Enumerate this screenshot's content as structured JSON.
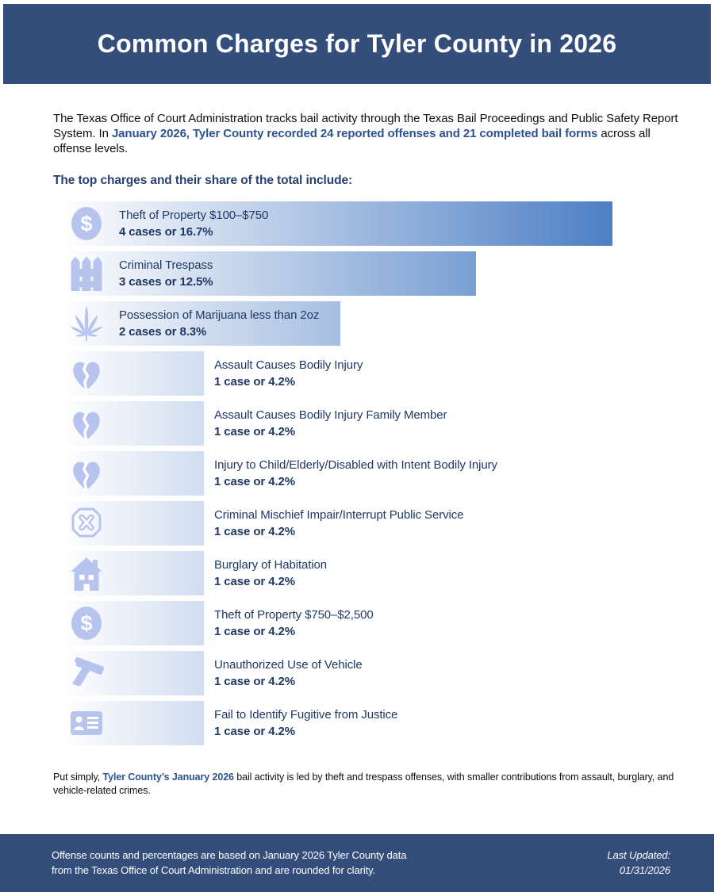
{
  "colors": {
    "band_navy": "#344e7b",
    "heading_navy": "#26406f",
    "inline_bold_navy": "#2d5290",
    "bar_label_navy": "#1f3864",
    "bar_gradient_start": "#fdfdfe",
    "bar_gradient_end": "#4d7fc4",
    "icon_periwinkle": "#b7c4ee",
    "footer_text": "#ffffff"
  },
  "header": {
    "title": "Common Charges for Tyler County in 2026"
  },
  "intro": {
    "segments": [
      {
        "text": "The Texas Office of Court Administration tracks bail activity through the Texas Bail Proceedings and Public Safety Report System. In ",
        "bold": false
      },
      {
        "text": "January 2026, Tyler County recorded 24 reported offenses and 21 completed bail forms",
        "bold": true
      },
      {
        "text": " across all offense levels.",
        "bold": false
      }
    ]
  },
  "list_heading": "The top charges and their share of the total include:",
  "chart_data": {
    "type": "bar",
    "orientation": "horizontal",
    "title": "The top charges and their share of the total include:",
    "unit": "cases",
    "total_reported_offenses": 24,
    "completed_bail_forms": 21,
    "max_bar_cases": 4,
    "bars": [
      {
        "label": "Theft of Property $100–$750",
        "cases": 4,
        "percent": 16.7,
        "detail": "4 cases or 16.7%",
        "icon": "dollar-sign-icon"
      },
      {
        "label": "Criminal Trespass",
        "cases": 3,
        "percent": 12.5,
        "detail": "3 cases or 12.5%",
        "icon": "fence-icon"
      },
      {
        "label": "Possession of Marijuana less than 2oz",
        "cases": 2,
        "percent": 8.3,
        "detail": "2 cases or 8.3%",
        "icon": "marijuana-leaf-icon"
      },
      {
        "label": "Assault Causes Bodily Injury",
        "cases": 1,
        "percent": 4.2,
        "detail": "1 case or 4.2%",
        "icon": "broken-heart-icon"
      },
      {
        "label": "Assault Causes Bodily Injury Family Member",
        "cases": 1,
        "percent": 4.2,
        "detail": "1 case or 4.2%",
        "icon": "broken-heart-icon"
      },
      {
        "label": "Injury to Child/Elderly/Disabled with Intent Bodily Injury",
        "cases": 1,
        "percent": 4.2,
        "detail": "1 case or 4.2%",
        "icon": "broken-heart-icon"
      },
      {
        "label": "Criminal Mischief Impair/Interrupt Public Service",
        "cases": 1,
        "percent": 4.2,
        "detail": "1 case or 4.2%",
        "icon": "octagon-x-icon"
      },
      {
        "label": "Burglary of Habitation",
        "cases": 1,
        "percent": 4.2,
        "detail": "1 case or 4.2%",
        "icon": "house-icon"
      },
      {
        "label": "Theft of Property $750–$2,500",
        "cases": 1,
        "percent": 4.2,
        "detail": "1 case or 4.2%",
        "icon": "dollar-sign-icon"
      },
      {
        "label": "Unauthorized Use of Vehicle",
        "cases": 1,
        "percent": 4.2,
        "detail": "1 case or 4.2%",
        "icon": "handgun-icon"
      },
      {
        "label": "Fail to Identify Fugitive from Justice",
        "cases": 1,
        "percent": 4.2,
        "detail": "1 case or 4.2%",
        "icon": "id-card-icon"
      }
    ]
  },
  "summary": {
    "segments": [
      {
        "text": "Put simply, ",
        "bold": false
      },
      {
        "text": "Tyler County’s January 2026",
        "bold": true
      },
      {
        "text": " bail activity is led by theft and trespass offenses, with smaller contributions from assault, burglary, and vehicle-related crimes.",
        "bold": false
      }
    ]
  },
  "footer": {
    "note_lines": [
      "Offense counts and percentages are based on January 2026 Tyler County data",
      "from the Texas Office of Court Administration and are rounded for clarity."
    ],
    "last_updated_label": "Last Updated:",
    "last_updated_value": "01/31/2026"
  }
}
